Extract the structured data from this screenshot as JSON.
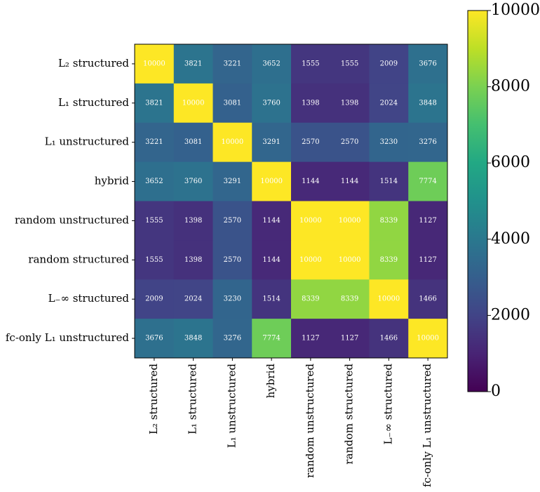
{
  "chart_data": {
    "type": "heatmap",
    "x_categories": [
      "L₂ structured",
      "L₁ structured",
      "L₁ unstructured",
      "hybrid",
      "random unstructured",
      "random structured",
      "L₋∞ structured",
      "fc-only L₁ unstructured"
    ],
    "y_categories": [
      "L₂ structured",
      "L₁ structured",
      "L₁ unstructured",
      "hybrid",
      "random unstructured",
      "random structured",
      "L₋∞ structured",
      "fc-only L₁ unstructured"
    ],
    "values": [
      [
        10000,
        3821,
        3221,
        3652,
        1555,
        1555,
        2009,
        3676
      ],
      [
        3821,
        10000,
        3081,
        3760,
        1398,
        1398,
        2024,
        3848
      ],
      [
        3221,
        3081,
        10000,
        3291,
        2570,
        2570,
        3230,
        3276
      ],
      [
        3652,
        3760,
        3291,
        10000,
        1144,
        1144,
        1514,
        7774
      ],
      [
        1555,
        1398,
        2570,
        1144,
        10000,
        10000,
        8339,
        1127
      ],
      [
        1555,
        1398,
        2570,
        1144,
        10000,
        10000,
        8339,
        1127
      ],
      [
        2009,
        2024,
        3230,
        1514,
        8339,
        8339,
        10000,
        1466
      ],
      [
        3676,
        3848,
        3276,
        7774,
        1127,
        1127,
        1466,
        10000
      ]
    ],
    "colormap": "viridis",
    "zlim": [
      0,
      10000
    ],
    "zticks": [
      0,
      2000,
      4000,
      6000,
      8000,
      10000
    ]
  }
}
